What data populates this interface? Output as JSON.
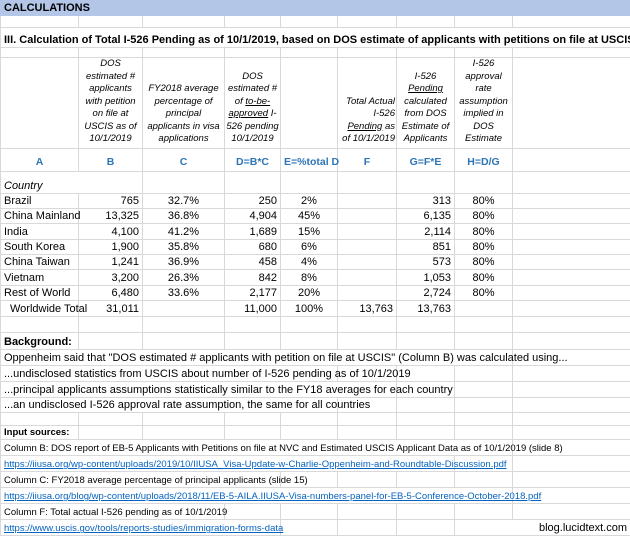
{
  "title": "CALCULATIONS",
  "heading": "III. Calculation of Total I-526 Pending as of 10/1/2019, based on DOS estimate of applicants with petitions on file at USCIS",
  "headers": {
    "B": "DOS estimated # applicants with petition on file at USCIS as of 10/1/2019",
    "C": "FY2018 average percentage of principal applicants in visa applications",
    "D_pre": "DOS estimated # of ",
    "D_u": "to-be-approved",
    "D_post": " I-526 pending 10/1/2019",
    "F_pre": "Total Actual I-526 ",
    "F_u": "Pending",
    "F_post": " as of 10/1/2019",
    "G_pre": "I-526 ",
    "G_u": "Pending",
    "G_post": " calculated from DOS Estimate of Applicants",
    "H": "I-526 approval rate assumption implied in DOS Estimate"
  },
  "letters": [
    "A",
    "B",
    "C",
    "D=B*C",
    "E=%total D",
    "F",
    "G=F*E",
    "H=D/G"
  ],
  "country_label": "Country",
  "rows": [
    {
      "country": "Brazil",
      "b": "765",
      "c": "32.7%",
      "d": "250",
      "e": "2%",
      "f": "",
      "g": "313",
      "h": "80%"
    },
    {
      "country": "China Mainland",
      "b": "13,325",
      "c": "36.8%",
      "d": "4,904",
      "e": "45%",
      "f": "",
      "g": "6,135",
      "h": "80%"
    },
    {
      "country": "India",
      "b": "4,100",
      "c": "41.2%",
      "d": "1,689",
      "e": "15%",
      "f": "",
      "g": "2,114",
      "h": "80%"
    },
    {
      "country": "South Korea",
      "b": "1,900",
      "c": "35.8%",
      "d": "680",
      "e": "6%",
      "f": "",
      "g": "851",
      "h": "80%"
    },
    {
      "country": "China Taiwan",
      "b": "1,241",
      "c": "36.9%",
      "d": "458",
      "e": "4%",
      "f": "",
      "g": "573",
      "h": "80%"
    },
    {
      "country": "Vietnam",
      "b": "3,200",
      "c": "26.3%",
      "d": "842",
      "e": "8%",
      "f": "",
      "g": "1,053",
      "h": "80%"
    },
    {
      "country": "Rest of World",
      "b": "6,480",
      "c": "33.6%",
      "d": "2,177",
      "e": "20%",
      "f": "",
      "g": "2,724",
      "h": "80%"
    }
  ],
  "total": {
    "country": "Worldwide Total",
    "b": "31,011",
    "c": "",
    "d": "11,000",
    "e": "100%",
    "f": "13,763",
    "g": "13,763",
    "h": ""
  },
  "background": {
    "label": "Background:",
    "lines": [
      "Oppenheim said that \"DOS estimated # applicants with petition on file at USCIS\" (Column B) was calculated using...",
      "...undisclosed statistics from USCIS about number of I-526 pending as of 10/1/2019",
      "...principal applicants assumptions statistically similar to the FY18 averages for each country",
      "...an undisclosed I-526 approval rate assumption, the same for all countries"
    ]
  },
  "sources": {
    "label": "Input sources:",
    "b_text": "Column B: DOS report of EB-5 Applicants with Petitions on file at NVC and Estimated USCIS Applicant Data as of 10/1/2019 (slide 8)",
    "b_link": "https://iiusa.org/wp-content/uploads/2019/10/IIUSA_Visa-Update-w-Charlie-Oppenheim-and-Roundtable-Discussion.pdf",
    "c_text": "Column C: FY2018 average percentage of principal applicants (slide 15)",
    "c_link": "https://iiusa.org/blog/wp-content/uploads/2018/11/EB-5-AILA.IIUSA-Visa-numbers-panel-for-EB-5-Conference-October-2018.pdf",
    "f_text": "Column F: Total actual I-526 pending as of 10/1/2019",
    "f_link": "https://www.uscis.gov/tools/reports-studies/immigration-forms-data"
  },
  "watermark": "blog.lucidtext.com"
}
